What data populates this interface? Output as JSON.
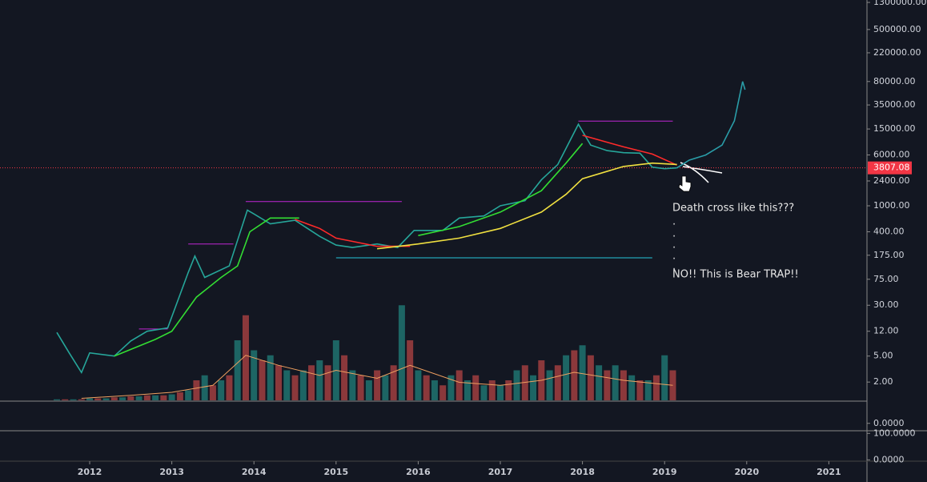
{
  "chart_data": {
    "type": "line",
    "log_scale": true,
    "xlim": [
      2010.908,
      2021.464
    ],
    "xticks": [
      2012,
      2013,
      2014,
      2015,
      2016,
      2017,
      2018,
      2019,
      2020,
      2021
    ],
    "ylim": [
      1.05,
      1416000
    ],
    "yticks": [
      {
        "value": 1300000,
        "label": "1300000.00"
      },
      {
        "value": 500000,
        "label": "500000.00"
      },
      {
        "value": 220000,
        "label": "220000.00"
      },
      {
        "value": 80000,
        "label": "80000.00"
      },
      {
        "value": 35000,
        "label": "35000.00"
      },
      {
        "value": 15000,
        "label": "15000.00"
      },
      {
        "value": 6000,
        "label": "6000.00"
      },
      {
        "value": 2400,
        "label": "2400.00"
      },
      {
        "value": 1000,
        "label": "1000.00"
      },
      {
        "value": 400,
        "label": "400.00"
      },
      {
        "value": 175,
        "label": "175.00"
      },
      {
        "value": 75,
        "label": "75.00"
      },
      {
        "value": 30,
        "label": "30.00"
      },
      {
        "value": 12,
        "label": "12.00"
      },
      {
        "value": 5,
        "label": "5.00"
      },
      {
        "value": 2,
        "label": "2.00"
      }
    ],
    "last_price": 3807.08,
    "last_price_color": "#f23645",
    "series": [
      {
        "color": "#26a69a",
        "x": [
          2011.6,
          2011.75,
          2011.9,
          2012.0,
          2012.3,
          2012.5,
          2012.7,
          2012.95,
          2013.2,
          2013.28,
          2013.4,
          2013.7,
          2013.92,
          2014.0,
          2014.2,
          2014.5,
          2014.8,
          2015.0,
          2015.2,
          2015.5,
          2015.75,
          2015.95,
          2016.3,
          2016.5,
          2016.8,
          2017.0,
          2017.3,
          2017.5,
          2017.7,
          2017.95,
          2018.1,
          2018.3,
          2018.5,
          2018.7,
          2018.85,
          2019.0,
          2019.15
        ],
        "values": [
          11.5,
          5.6,
          2.8,
          5.6,
          5,
          8.5,
          12,
          13.5,
          95,
          170,
          80,
          120,
          860,
          750,
          530,
          600,
          340,
          250,
          230,
          260,
          230,
          420,
          420,
          650,
          700,
          1000,
          1200,
          2500,
          4300,
          17700,
          8500,
          7000,
          6500,
          6400,
          3900,
          3700,
          3800
        ]
      },
      {
        "color": "#2a9da8",
        "x": [
          2019.15,
          2019.3,
          2019.5,
          2019.7,
          2019.85,
          2019.95,
          2019.98
        ],
        "values": [
          3800,
          5000,
          6000,
          8500,
          20000,
          80000,
          60000
        ]
      },
      {
        "color": "#33dd33",
        "x": [
          2012.3,
          2012.8,
          2013.0,
          2013.3,
          2013.6,
          2013.8,
          2013.95,
          2014.2,
          2014.55,
          2015.5,
          2016.0,
          2016.5,
          2017.0,
          2017.5,
          2017.8,
          2018.0
        ],
        "values": [
          5,
          9,
          12,
          40,
          80,
          120,
          400,
          650,
          650,
          null,
          350,
          480,
          800,
          1700,
          4500,
          9000
        ]
      },
      {
        "color": "#ff2a2a",
        "x": [
          2014.5,
          2014.8,
          2015.0,
          2015.5,
          2015.9,
          2017.0,
          2018.0,
          2018.5,
          2018.85,
          2019.15
        ],
        "values": [
          620,
          450,
          320,
          240,
          240,
          null,
          12000,
          8000,
          6200,
          4200
        ]
      },
      {
        "color": "#f0e040",
        "x": [
          2015.5,
          2016.0,
          2016.5,
          2017.0,
          2017.5,
          2017.8,
          2018.0,
          2018.5,
          2018.85,
          2019.15
        ],
        "values": [
          220,
          260,
          320,
          450,
          800,
          1500,
          2600,
          4000,
          4500,
          4300
        ]
      }
    ],
    "levels": [
      {
        "value": 19800,
        "from": 2017.95,
        "to": 2019.1,
        "color": "#c026d3"
      },
      {
        "value": 1160,
        "from": 2013.9,
        "to": 2015.8,
        "color": "#c026d3"
      },
      {
        "value": 260,
        "from": 2013.2,
        "to": 2013.75,
        "color": "#c026d3"
      },
      {
        "value": 13,
        "from": 2012.6,
        "to": 2012.95,
        "color": "#c026d3"
      },
      {
        "value": 160,
        "from": 2015.0,
        "to": 2018.85,
        "color": "#26c6da"
      }
    ],
    "volume": {
      "ylim": [
        0,
        100
      ],
      "colors": [
        "#26a69a",
        "#ef5350"
      ],
      "x": [
        2011.6,
        2011.7,
        2011.8,
        2011.9,
        2012,
        2012.1,
        2012.2,
        2012.3,
        2012.4,
        2012.5,
        2012.6,
        2012.7,
        2012.8,
        2012.9,
        2013,
        2013.1,
        2013.2,
        2013.3,
        2013.4,
        2013.5,
        2013.6,
        2013.7,
        2013.8,
        2013.9,
        2014,
        2014.1,
        2014.2,
        2014.3,
        2014.4,
        2014.5,
        2014.6,
        2014.7,
        2014.8,
        2014.9,
        2015,
        2015.1,
        2015.2,
        2015.3,
        2015.4,
        2015.5,
        2015.6,
        2015.7,
        2015.8,
        2015.9,
        2016,
        2016.1,
        2016.2,
        2016.3,
        2016.4,
        2016.5,
        2016.6,
        2016.7,
        2016.8,
        2016.9,
        2017,
        2017.1,
        2017.2,
        2017.3,
        2017.4,
        2017.5,
        2017.6,
        2017.7,
        2017.8,
        2017.9,
        2018,
        2018.1,
        2018.2,
        2018.3,
        2018.4,
        2018.5,
        2018.6,
        2018.7,
        2018.8,
        2018.9,
        2019,
        2019.1
      ],
      "values": [
        1,
        1,
        1,
        1,
        2,
        2,
        2,
        3,
        3,
        4,
        4,
        5,
        5,
        5,
        6,
        8,
        10,
        20,
        25,
        15,
        20,
        25,
        60,
        85,
        50,
        40,
        45,
        35,
        30,
        25,
        30,
        35,
        40,
        35,
        60,
        45,
        30,
        25,
        20,
        30,
        25,
        35,
        95,
        60,
        30,
        25,
        20,
        15,
        25,
        30,
        20,
        25,
        15,
        20,
        15,
        20,
        30,
        35,
        25,
        40,
        30,
        35,
        45,
        50,
        55,
        45,
        35,
        30,
        35,
        30,
        25,
        20,
        20,
        25,
        45,
        30
      ],
      "ma_color": "#f0a060",
      "ma_x": [
        2011.9,
        2012.5,
        2013,
        2013.5,
        2013.9,
        2014.3,
        2014.8,
        2015.0,
        2015.5,
        2015.9,
        2016.5,
        2017.0,
        2017.5,
        2017.9,
        2018.5,
        2019.1
      ],
      "ma_values": [
        2,
        5,
        8,
        15,
        45,
        35,
        25,
        30,
        22,
        35,
        18,
        15,
        20,
        28,
        20,
        15
      ]
    },
    "panes": [
      {
        "ylim": [
          -10,
          30
        ],
        "yticks": [
          {
            "value": 0,
            "label": "0.0000"
          }
        ]
      },
      {
        "ylim": [
          -5,
          110
        ],
        "yticks": [
          {
            "value": 100,
            "label": "100.0000"
          },
          {
            "value": 0,
            "label": "0.0000"
          }
        ]
      }
    ],
    "annotations": [
      "Death cross like this???",
      ".",
      ".",
      ".",
      ".",
      ".",
      "NO!! This is Bear TRAP!!"
    ]
  }
}
